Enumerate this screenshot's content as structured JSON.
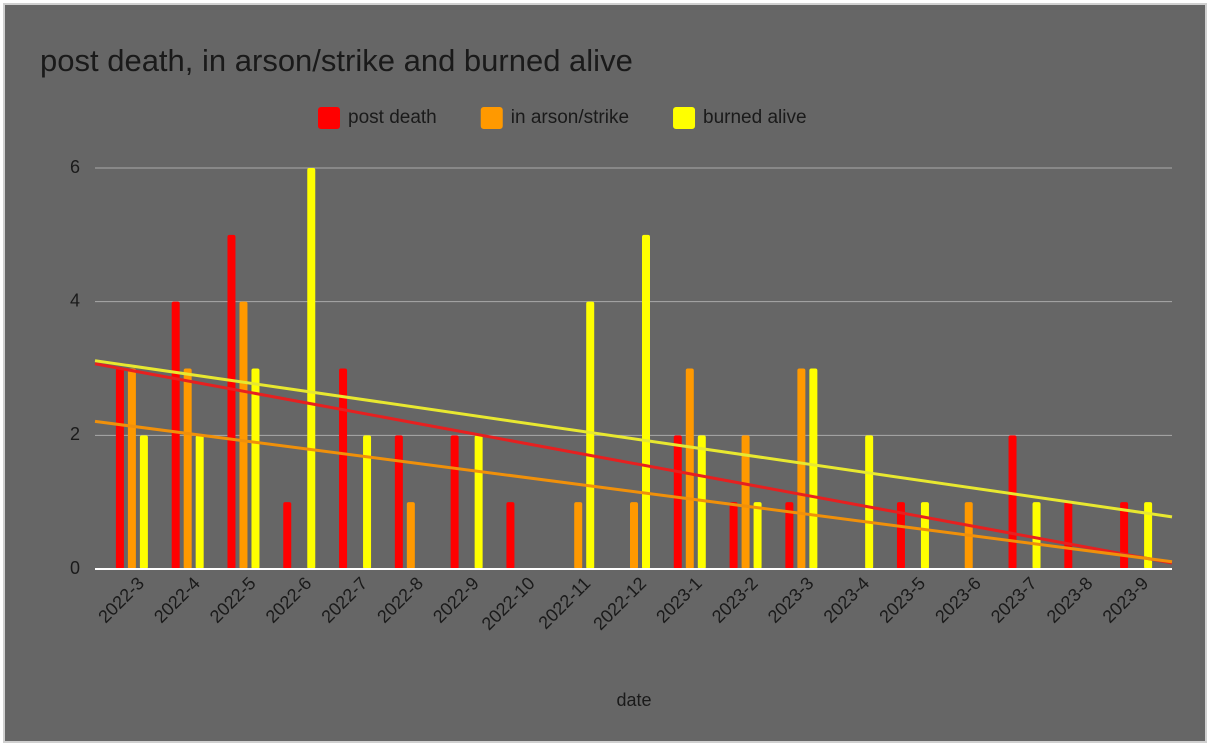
{
  "chart_data": {
    "type": "bar",
    "title": "post death, in arson/strike and burned alive",
    "x_label": "date",
    "categories": [
      "2022-3",
      "2022-4",
      "2022-5",
      "2022-6",
      "2022-7",
      "2022-8",
      "2022-9",
      "2022-10",
      "2022-11",
      "2022-12",
      "2023-1",
      "2023-2",
      "2023-3",
      "2023-4",
      "2023-5",
      "2023-6",
      "2023-7",
      "2023-8",
      "2023-9"
    ],
    "series": [
      {
        "name": "post death",
        "color": "#ff0000",
        "values": [
          3,
          4,
          5,
          1,
          3,
          2,
          2,
          1,
          0,
          0,
          2,
          1,
          1,
          0,
          1,
          0,
          2,
          1,
          1
        ]
      },
      {
        "name": "in arson/strike",
        "color": "#ff9900",
        "values": [
          3,
          3,
          4,
          0,
          0,
          1,
          0,
          0,
          1,
          1,
          3,
          2,
          3,
          0,
          0,
          1,
          0,
          0,
          0
        ]
      },
      {
        "name": "burned alive",
        "color": "#ffff00",
        "values": [
          2,
          2,
          3,
          6,
          2,
          0,
          2,
          0,
          4,
          5,
          2,
          1,
          3,
          2,
          1,
          0,
          1,
          0,
          1
        ]
      }
    ],
    "trendline": true,
    "ylim": [
      0,
      6
    ],
    "yticks": [
      0,
      2,
      4,
      6
    ],
    "grid": true
  }
}
